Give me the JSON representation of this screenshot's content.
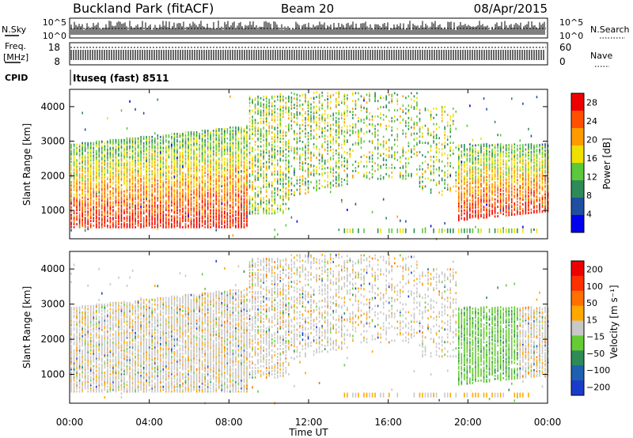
{
  "header": {
    "station": "Buckland Park (fitACF)",
    "beam": "Beam 20",
    "date": "08/Apr/2015"
  },
  "top_panels": {
    "nsky_label": "N.Sky",
    "nsky_ticks": [
      "10^5",
      "10^0"
    ],
    "nsearch_label": "N.Search",
    "nsearch_ticks": [
      "10^5",
      "10^0"
    ],
    "freq_label_1": "Freq.",
    "freq_label_2": "[MHz]",
    "freq_ticks": [
      "18",
      "8"
    ],
    "nave_label": "Nave",
    "nave_ticks": [
      "60",
      "0"
    ],
    "cpid_label": "CPID",
    "cpid_value": "Ituseq (fast) 8511"
  },
  "chart_data": [
    {
      "type": "heatmap",
      "quantity": "Power",
      "xlabel": "Time UT",
      "ylabel": "Slant Range [km]",
      "x_ticks": [
        "00:00",
        "04:00",
        "08:00",
        "12:00",
        "16:00",
        "20:00",
        "00:00"
      ],
      "x_range_hours": [
        0,
        24
      ],
      "y_ticks": [
        1000,
        2000,
        3000,
        4000
      ],
      "y_range_km": [
        180,
        4500
      ],
      "colorbar_label": "Power [dB]",
      "colorbar_ticks": [
        4,
        8,
        12,
        16,
        20,
        24,
        28
      ],
      "colorbar_range": [
        0,
        30
      ],
      "colors": [
        "#0000ee",
        "#1f4fa0",
        "#2e8b57",
        "#5cc83c",
        "#f0e000",
        "#ff9a00",
        "#ff5000",
        "#ee0000"
      ]
    },
    {
      "type": "heatmap",
      "quantity": "Velocity",
      "xlabel": "Time UT",
      "ylabel": "Slant Range [km]",
      "x_ticks": [
        "00:00",
        "04:00",
        "08:00",
        "12:00",
        "16:00",
        "20:00",
        "00:00"
      ],
      "x_range_hours": [
        0,
        24
      ],
      "y_ticks": [
        1000,
        2000,
        3000,
        4000
      ],
      "y_range_km": [
        180,
        4500
      ],
      "colorbar_label": "Velocity [m s⁻¹]",
      "colorbar_ticks": [
        "200",
        "100",
        "50",
        "15",
        "−15",
        "−50",
        "−100",
        "−200"
      ],
      "colors": [
        "#1a3ccc",
        "#2060b0",
        "#2e8b57",
        "#66cc33",
        "#c8c8c8",
        "#ffa800",
        "#ff7000",
        "#ff3000",
        "#ee0000"
      ]
    }
  ]
}
